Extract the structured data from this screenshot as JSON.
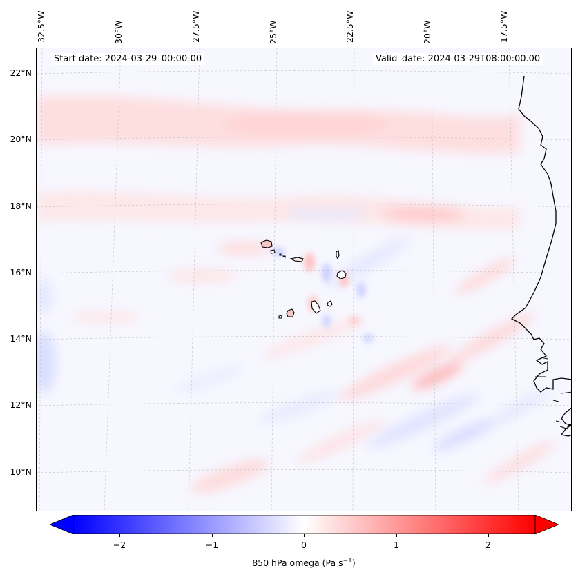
{
  "header": {
    "start_date": "Start date: 2024-03-29_00:00:00",
    "valid_date": "Valid_date: 2024-03-29T08:00:00.00"
  },
  "axes": {
    "lon_labels": [
      "32.5°W",
      "30°W",
      "27.5°W",
      "25°W",
      "22.5°W",
      "20°W",
      "17.5°W"
    ],
    "lat_labels": [
      "22°N",
      "20°N",
      "18°N",
      "16°N",
      "14°N",
      "12°N",
      "10°N"
    ]
  },
  "colorbar": {
    "label_prefix": "850 hPa omega (Pa s",
    "label_exp": "−1",
    "label_suffix": ")",
    "ticks": [
      "−2",
      "−1",
      "0",
      "1",
      "2"
    ],
    "min": -2.7,
    "max": 2.7,
    "colormap": "bwr",
    "low_color": "#0000ff",
    "mid_color": "#ffffff",
    "high_color": "#ff0000"
  },
  "map": {
    "coastline_color": "#000000",
    "island_fill": "#f5c8c8",
    "gridline_color": "#c8c8c8"
  }
}
